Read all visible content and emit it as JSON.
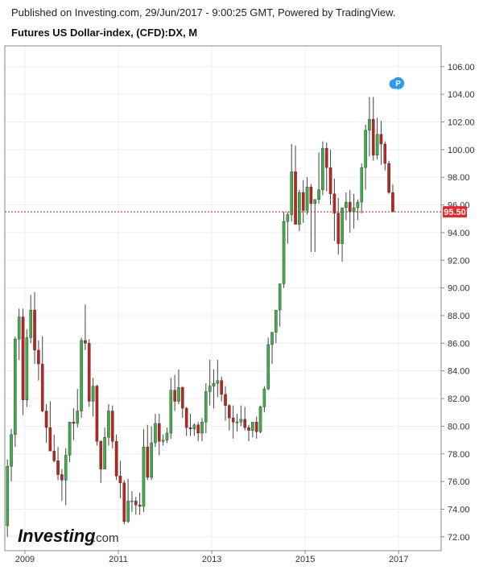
{
  "header": {
    "published": "Published on Investing.com, 29/Jun/2017 - 9:00:25 GMT, Powered by TradingView.",
    "symbol": "Futures US Dollar-index, (CFD):DX, M"
  },
  "logo": {
    "brand": "Investing",
    "suffix": ".com"
  },
  "colors": {
    "up": "#3fae49",
    "down": "#c0231f",
    "wick": "#444444",
    "grid": "#eeeeee",
    "price_line": "#c0231f",
    "price_label_bg": "#e8262a",
    "event_marker": "#2a9bf0"
  },
  "event_marker": {
    "label": "P"
  },
  "chart_data": {
    "type": "candlestick",
    "interval": "monthly",
    "ylim": [
      71,
      107.5
    ],
    "xlim": [
      2008.57,
      2017.91
    ],
    "y_ticks": [
      "72.00",
      "74.00",
      "76.00",
      "78.00",
      "80.00",
      "82.00",
      "84.00",
      "86.00",
      "88.00",
      "90.00",
      "92.00",
      "94.00",
      "96.00",
      "98.00",
      "100.00",
      "102.00",
      "104.00",
      "106.00"
    ],
    "x_ticks": [
      "2009",
      "2011",
      "2013",
      "2015",
      "2017"
    ],
    "last_price": "95.50",
    "last_price_value": 95.5,
    "annotation": {
      "label": "P",
      "x": 2016.99,
      "y": 104.8
    },
    "candles_ohlc_from_2008_08": [
      [
        72.8,
        77.6,
        72.0,
        77.1
      ],
      [
        77.1,
        79.8,
        76.0,
        79.4
      ],
      [
        79.4,
        86.5,
        78.5,
        86.3
      ],
      [
        86.3,
        88.5,
        84.8,
        87.9
      ],
      [
        87.9,
        88.5,
        80.8,
        81.9
      ],
      [
        81.9,
        87.0,
        81.4,
        86.4
      ],
      [
        86.4,
        89.5,
        86.0,
        88.4
      ],
      [
        88.4,
        89.7,
        84.5,
        85.5
      ],
      [
        85.5,
        86.2,
        83.3,
        84.5
      ],
      [
        84.5,
        86.5,
        81.0,
        81.1
      ],
      [
        81.1,
        81.6,
        78.8,
        79.9
      ],
      [
        79.9,
        81.8,
        78.2,
        78.2
      ],
      [
        78.2,
        79.4,
        77.4,
        77.5
      ],
      [
        77.5,
        78.5,
        76.1,
        76.5
      ],
      [
        76.5,
        76.9,
        74.6,
        76.1
      ],
      [
        76.1,
        78.4,
        74.3,
        77.9
      ],
      [
        77.9,
        80.3,
        77.4,
        80.3
      ],
      [
        80.3,
        81.3,
        79.0,
        80.2
      ],
      [
        80.2,
        82.7,
        79.9,
        81.1
      ],
      [
        81.1,
        86.4,
        80.6,
        86.2
      ],
      [
        86.2,
        88.8,
        85.5,
        86.0
      ],
      [
        86.0,
        86.3,
        81.4,
        81.8
      ],
      [
        81.8,
        83.5,
        80.7,
        82.9
      ],
      [
        82.9,
        83.0,
        78.6,
        78.9
      ],
      [
        78.9,
        79.0,
        75.9,
        76.9
      ],
      [
        76.9,
        79.9,
        76.9,
        79.2
      ],
      [
        79.2,
        81.6,
        78.6,
        81.1
      ],
      [
        81.1,
        81.5,
        78.4,
        78.9
      ],
      [
        78.9,
        79.4,
        76.1,
        76.4
      ],
      [
        76.4,
        77.5,
        74.8,
        75.9
      ],
      [
        75.9,
        76.1,
        72.9,
        73.1
      ],
      [
        73.1,
        76.2,
        73.0,
        74.6
      ],
      [
        74.6,
        75.3,
        73.8,
        74.6
      ],
      [
        74.6,
        74.9,
        73.6,
        74.3
      ],
      [
        74.3,
        75.2,
        73.6,
        74.2
      ],
      [
        74.2,
        79.8,
        73.8,
        78.5
      ],
      [
        78.5,
        80.1,
        76.1,
        76.3
      ],
      [
        76.3,
        80.0,
        76.1,
        78.8
      ],
      [
        78.8,
        80.9,
        78.5,
        80.2
      ],
      [
        80.2,
        80.9,
        77.9,
        78.9
      ],
      [
        78.9,
        79.4,
        78.6,
        79.0
      ],
      [
        79.0,
        79.9,
        78.8,
        79.5
      ],
      [
        79.5,
        83.5,
        79.1,
        82.6
      ],
      [
        82.6,
        83.7,
        81.1,
        81.8
      ],
      [
        81.8,
        84.1,
        81.6,
        82.8
      ],
      [
        82.8,
        82.9,
        80.6,
        81.3
      ],
      [
        81.3,
        81.4,
        79.3,
        79.9
      ],
      [
        79.9,
        80.9,
        79.3,
        79.8
      ],
      [
        79.8,
        80.2,
        79.3,
        80.1
      ],
      [
        80.1,
        80.3,
        78.9,
        79.5
      ],
      [
        79.5,
        80.6,
        78.9,
        80.3
      ],
      [
        80.3,
        83.1,
        79.5,
        82.5
      ],
      [
        82.5,
        84.8,
        81.5,
        82.9
      ],
      [
        82.9,
        84.1,
        81.3,
        83.1
      ],
      [
        83.1,
        84.8,
        82.1,
        83.3
      ],
      [
        83.3,
        83.6,
        81.8,
        82.3
      ],
      [
        82.3,
        82.9,
        80.4,
        81.5
      ],
      [
        81.5,
        81.6,
        79.7,
        80.6
      ],
      [
        80.6,
        81.5,
        79.1,
        80.3
      ],
      [
        80.3,
        80.9,
        79.6,
        80.3
      ],
      [
        80.3,
        81.5,
        80.0,
        80.5
      ],
      [
        80.5,
        81.4,
        79.7,
        79.9
      ],
      [
        79.9,
        80.1,
        78.9,
        79.7
      ],
      [
        79.7,
        80.3,
        79.2,
        80.3
      ],
      [
        80.3,
        80.7,
        79.1,
        79.6
      ],
      [
        79.6,
        81.5,
        79.5,
        81.4
      ],
      [
        81.4,
        82.9,
        81.0,
        82.7
      ],
      [
        82.7,
        86.4,
        82.6,
        85.9
      ],
      [
        85.9,
        86.5,
        84.5,
        86.8
      ],
      [
        86.8,
        88.4,
        86.0,
        88.4
      ],
      [
        88.4,
        90.2,
        87.2,
        90.3
      ],
      [
        90.3,
        95.5,
        90.0,
        94.8
      ],
      [
        94.8,
        95.5,
        93.2,
        95.3
      ],
      [
        95.3,
        100.4,
        94.8,
        98.4
      ],
      [
        98.4,
        100.3,
        94.6,
        94.6
      ],
      [
        94.6,
        97.1,
        94.1,
        96.9
      ],
      [
        96.9,
        97.8,
        94.7,
        95.6
      ],
      [
        95.6,
        98.0,
        95.3,
        97.3
      ],
      [
        97.3,
        97.5,
        92.6,
        96.1
      ],
      [
        96.1,
        96.4,
        92.6,
        96.4
      ],
      [
        96.4,
        99.8,
        96.1,
        97.1
      ],
      [
        97.1,
        100.6,
        96.7,
        100.1
      ],
      [
        100.1,
        100.5,
        97.0,
        98.7
      ],
      [
        98.7,
        100.0,
        96.0,
        96.8
      ],
      [
        96.8,
        97.9,
        93.4,
        95.4
      ],
      [
        95.4,
        96.5,
        92.4,
        93.2
      ],
      [
        93.2,
        95.6,
        91.9,
        95.8
      ],
      [
        95.8,
        96.9,
        94.9,
        96.2
      ],
      [
        96.2,
        97.1,
        94.0,
        95.5
      ],
      [
        95.5,
        96.8,
        94.3,
        95.8
      ],
      [
        95.8,
        96.4,
        94.9,
        96.2
      ],
      [
        96.2,
        99.0,
        95.4,
        98.7
      ],
      [
        98.7,
        101.8,
        97.1,
        101.4
      ],
      [
        101.4,
        103.8,
        99.5,
        102.2
      ],
      [
        102.2,
        103.8,
        99.2,
        99.6
      ],
      [
        99.6,
        102.3,
        99.3,
        101.1
      ],
      [
        101.1,
        102.1,
        98.9,
        100.4
      ],
      [
        100.4,
        100.6,
        98.5,
        99.0
      ],
      [
        99.0,
        99.2,
        96.8,
        96.9
      ],
      [
        96.9,
        97.5,
        95.5,
        95.5
      ]
    ]
  }
}
